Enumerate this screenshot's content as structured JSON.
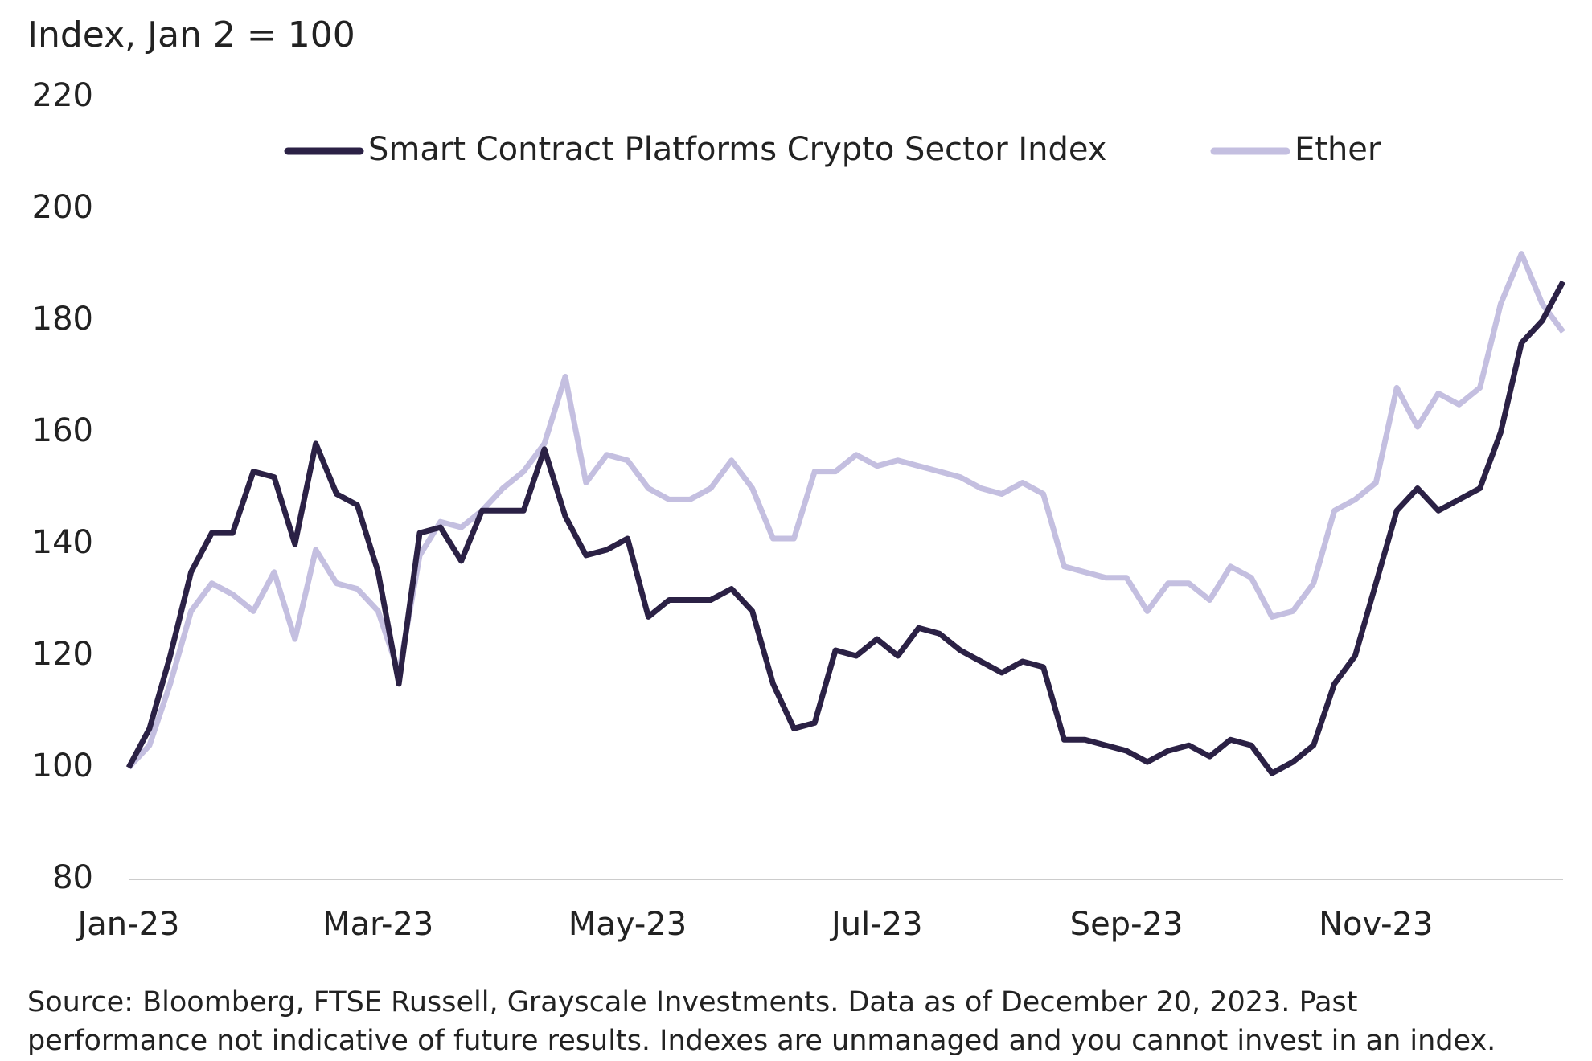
{
  "chart_data": {
    "type": "line",
    "y_axis_label": "Index, Jan 2 = 100",
    "source": [
      "Source: Bloomberg, FTSE Russell, Grayscale Investments. Data as of December 20, 2023. Past",
      "performance not indicative of future results. Indexes are unmanaged and you cannot invest in an index."
    ],
    "categories": [
      "Jan-23",
      null,
      null,
      null,
      null,
      null,
      null,
      null,
      null,
      null,
      null,
      null,
      "Mar-23",
      null,
      null,
      null,
      null,
      null,
      null,
      null,
      null,
      null,
      null,
      null,
      "May-23",
      null,
      null,
      null,
      null,
      null,
      null,
      null,
      null,
      null,
      null,
      null,
      "Jul-23",
      null,
      null,
      null,
      null,
      null,
      null,
      null,
      null,
      null,
      null,
      null,
      "Sep-23",
      null,
      null,
      null,
      null,
      null,
      null,
      null,
      null,
      null,
      null,
      null,
      "Nov-23",
      null,
      null,
      null,
      null,
      null,
      null,
      null,
      null,
      null
    ],
    "series": [
      {
        "name": "Smart Contract Platforms Crypto Sector Index",
        "color": "#2b2145",
        "values": [
          100,
          107,
          120,
          135,
          142,
          142,
          153,
          152,
          140,
          158,
          149,
          147,
          135,
          115,
          142,
          143,
          137,
          146,
          146,
          146,
          157,
          145,
          138,
          139,
          141,
          127,
          130,
          130,
          130,
          132,
          128,
          115,
          107,
          108,
          121,
          120,
          123,
          120,
          125,
          124,
          121,
          119,
          117,
          119,
          118,
          105,
          105,
          104,
          103,
          101,
          103,
          104,
          102,
          105,
          104,
          99,
          101,
          104,
          115,
          120,
          133,
          146,
          150,
          146,
          148,
          150,
          160,
          176,
          180,
          187
        ]
      },
      {
        "name": "Ether",
        "color": "#c4bfe0",
        "values": [
          100,
          104,
          115,
          128,
          133,
          131,
          128,
          135,
          123,
          139,
          133,
          132,
          128,
          117,
          138,
          144,
          143,
          146,
          150,
          153,
          158,
          170,
          151,
          156,
          155,
          150,
          148,
          148,
          150,
          155,
          150,
          141,
          141,
          153,
          153,
          156,
          154,
          155,
          154,
          153,
          152,
          150,
          149,
          151,
          149,
          136,
          135,
          134,
          134,
          128,
          133,
          133,
          130,
          136,
          134,
          127,
          128,
          133,
          146,
          148,
          151,
          168,
          161,
          167,
          165,
          168,
          183,
          192,
          183,
          178
        ]
      }
    ],
    "ylim": [
      80,
      220
    ],
    "yticks": [
      80,
      100,
      120,
      140,
      160,
      180,
      200,
      220
    ],
    "grid": false,
    "legend": "top"
  }
}
